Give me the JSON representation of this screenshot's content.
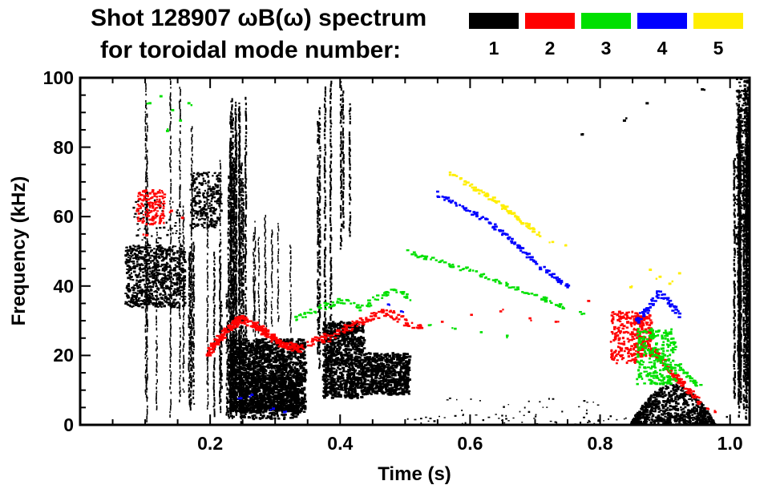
{
  "chart_data": {
    "type": "scatter",
    "title": "Shot 128907 ωB(ω) spectrum",
    "subtitle": "for toroidal mode number:",
    "xlabel": "Time (s)",
    "ylabel": "Frequency (kHz)",
    "xlim": [
      0.0,
      1.03
    ],
    "ylim": [
      0,
      100
    ],
    "xticks": [
      0.2,
      0.4,
      0.6,
      0.8,
      1.0
    ],
    "xtick_labels": [
      "0.2",
      "0.4",
      "0.6",
      "0.8",
      "1.0"
    ],
    "xtick_minor": 0.05,
    "yticks": [
      0,
      20,
      40,
      60,
      80,
      100
    ],
    "ytick_labels": [
      "0",
      "20",
      "40",
      "60",
      "80",
      "100"
    ],
    "ytick_minor": 5,
    "background": "#ffffff",
    "axis_color": "#000000",
    "legend_position": "top-right",
    "series": [
      {
        "mode": "1",
        "color": "#000000",
        "elements": [
          {
            "kind": "blob",
            "t": [
              0.068,
              0.16
            ],
            "f": [
              34,
              52
            ],
            "n": 800,
            "s": 2.2
          },
          {
            "kind": "blob",
            "t": [
              0.08,
              0.155
            ],
            "f": [
              52,
              66
            ],
            "n": 70,
            "s": 1.8
          },
          {
            "kind": "vstreaks",
            "t": [
              0.1,
              0.215
            ],
            "fbase": [
              0,
              12
            ],
            "ftop": [
              55,
              100
            ],
            "count": 9,
            "w": 1.6
          },
          {
            "kind": "vstreaks",
            "t": [
              0.165,
              0.235
            ],
            "fbase": [
              0,
              8
            ],
            "ftop": [
              30,
              55
            ],
            "count": 7,
            "w": 2.0
          },
          {
            "kind": "blob",
            "t": [
              0.168,
              0.215
            ],
            "f": [
              57,
              73
            ],
            "n": 260,
            "s": 2.2
          },
          {
            "kind": "vstreaks",
            "t": [
              0.225,
              0.258
            ],
            "fbase": [
              0,
              6
            ],
            "ftop": [
              68,
              100
            ],
            "count": 14,
            "w": 2.2
          },
          {
            "kind": "blob",
            "t": [
              0.228,
              0.345
            ],
            "f": [
              4,
              25
            ],
            "n": 1700,
            "s": 2.6
          },
          {
            "kind": "blob",
            "t": [
              0.245,
              0.335
            ],
            "f": [
              2,
              14
            ],
            "n": 500,
            "s": 2.6
          },
          {
            "kind": "vstreaks",
            "t": [
              0.26,
              0.335
            ],
            "fbase": [
              24,
              30
            ],
            "ftop": [
              40,
              62
            ],
            "count": 8,
            "w": 1.5
          },
          {
            "kind": "vstreaks",
            "t": [
              0.363,
              0.386
            ],
            "fbase": [
              8,
              20
            ],
            "ftop": [
              78,
              100
            ],
            "count": 4,
            "w": 2.2
          },
          {
            "kind": "vstreaks",
            "t": [
              0.398,
              0.415
            ],
            "fbase": [
              50,
              60
            ],
            "ftop": [
              88,
              100
            ],
            "count": 3,
            "w": 2.2
          },
          {
            "kind": "blob",
            "t": [
              0.372,
              0.435
            ],
            "f": [
              8,
              30
            ],
            "n": 950,
            "s": 2.6
          },
          {
            "kind": "blob",
            "t": [
              0.435,
              0.505
            ],
            "f": [
              9,
              21
            ],
            "n": 650,
            "s": 2.6
          },
          {
            "kind": "blob",
            "t": [
              0.5,
              1.0
            ],
            "f": [
              0,
              3
            ],
            "n": 90,
            "s": 1.6
          },
          {
            "kind": "blob",
            "t": [
              0.55,
              0.8
            ],
            "f": [
              3,
              8
            ],
            "n": 28,
            "s": 1.5
          },
          {
            "kind": "blob",
            "t": [
              0.845,
              0.975
            ],
            "f": [
              0,
              12
            ],
            "n": 800,
            "s": 2.4,
            "profile": "hill"
          },
          {
            "kind": "vstreaks",
            "t": [
              1.005,
              1.028
            ],
            "fbase": [
              0,
              18
            ],
            "ftop": [
              75,
              100
            ],
            "count": 12,
            "w": 2.4
          },
          {
            "kind": "blob",
            "t": [
              1.008,
              1.028
            ],
            "f": [
              52,
              100
            ],
            "n": 320,
            "s": 2.2
          },
          {
            "kind": "dots",
            "pts": [
              [
                0.955,
                97
              ],
              [
                0.87,
                93
              ],
              [
                0.835,
                88
              ],
              [
                0.77,
                84
              ]
            ],
            "s": 2.5
          }
        ]
      },
      {
        "mode": "2",
        "color": "#ff0000",
        "elements": [
          {
            "kind": "blob",
            "t": [
              0.085,
              0.128
            ],
            "f": [
              58,
              68
            ],
            "n": 160,
            "s": 2.2
          },
          {
            "kind": "dots",
            "pts": [
              [
                0.138,
                62
              ],
              [
                0.1,
                55
              ],
              [
                0.155,
                60
              ]
            ],
            "s": 2.5
          },
          {
            "kind": "chain",
            "pts": [
              [
                0.195,
                21
              ],
              [
                0.22,
                27
              ],
              [
                0.245,
                31
              ],
              [
                0.275,
                28
              ],
              [
                0.305,
                24
              ],
              [
                0.335,
                22
              ]
            ],
            "n": 260,
            "jit": 2.2,
            "s": 2.6
          },
          {
            "kind": "chain",
            "pts": [
              [
                0.34,
                23
              ],
              [
                0.385,
                26
              ],
              [
                0.43,
                30
              ],
              [
                0.465,
                33
              ],
              [
                0.5,
                30
              ],
              [
                0.525,
                28
              ]
            ],
            "n": 130,
            "jit": 2.4,
            "s": 2.4
          },
          {
            "kind": "dots",
            "pts": [
              [
                0.555,
                30
              ],
              [
                0.6,
                32
              ],
              [
                0.645,
                33
              ],
              [
                0.69,
                31
              ],
              [
                0.73,
                30
              ],
              [
                0.78,
                36
              ]
            ],
            "s": 2.2
          },
          {
            "kind": "blob",
            "t": [
              0.815,
              0.855
            ],
            "f": [
              18,
              33
            ],
            "n": 180,
            "s": 2.4
          },
          {
            "kind": "blob",
            "t": [
              0.855,
              0.878
            ],
            "f": [
              20,
              32
            ],
            "n": 140,
            "s": 2.4
          },
          {
            "kind": "chain",
            "pts": [
              [
                0.878,
                22
              ],
              [
                0.9,
                17
              ],
              [
                0.925,
                12
              ],
              [
                0.95,
                7
              ]
            ],
            "n": 110,
            "jit": 1.8,
            "s": 2.4
          },
          {
            "kind": "dots",
            "pts": [
              [
                0.963,
                5
              ],
              [
                0.975,
                4
              ]
            ],
            "s": 2.2
          }
        ]
      },
      {
        "mode": "3",
        "color": "#00e000",
        "elements": [
          {
            "kind": "dots",
            "pts": [
              [
                0.105,
                93
              ],
              [
                0.122,
                95
              ],
              [
                0.14,
                91
              ],
              [
                0.152,
                88
              ],
              [
                0.132,
                85
              ],
              [
                0.165,
                93
              ]
            ],
            "s": 2.4
          },
          {
            "kind": "chain",
            "pts": [
              [
                0.33,
                31
              ],
              [
                0.365,
                34
              ],
              [
                0.4,
                36
              ],
              [
                0.43,
                34
              ],
              [
                0.455,
                37
              ],
              [
                0.48,
                39
              ],
              [
                0.505,
                37
              ]
            ],
            "n": 85,
            "jit": 1.8,
            "s": 2.4
          },
          {
            "kind": "chain",
            "pts": [
              [
                0.5,
                50
              ],
              [
                0.555,
                47
              ],
              [
                0.61,
                44
              ],
              [
                0.665,
                40
              ],
              [
                0.72,
                36
              ],
              [
                0.775,
                32
              ]
            ],
            "n": 95,
            "jit": 1.2,
            "s": 2.4
          },
          {
            "kind": "dots",
            "pts": [
              [
                0.535,
                29
              ],
              [
                0.575,
                28
              ],
              [
                0.615,
                27
              ],
              [
                0.655,
                26
              ]
            ],
            "s": 2.2
          },
          {
            "kind": "blob",
            "t": [
              0.855,
              0.915
            ],
            "f": [
              12,
              28
            ],
            "n": 260,
            "s": 2.5
          },
          {
            "kind": "chain",
            "pts": [
              [
                0.915,
                18
              ],
              [
                0.935,
                14
              ],
              [
                0.955,
                11
              ]
            ],
            "n": 30,
            "jit": 1.5,
            "s": 2.4
          }
        ]
      },
      {
        "mode": "4",
        "color": "#0000ff",
        "elements": [
          {
            "kind": "chain",
            "pts": [
              [
                0.545,
                67
              ],
              [
                0.585,
                63
              ],
              [
                0.625,
                59
              ],
              [
                0.665,
                53
              ],
              [
                0.705,
                46
              ],
              [
                0.75,
                40
              ]
            ],
            "n": 110,
            "jit": 1.2,
            "s": 2.6
          },
          {
            "kind": "dots",
            "pts": [
              [
                0.245,
                8
              ],
              [
                0.262,
                9
              ],
              [
                0.295,
                5
              ],
              [
                0.312,
                4
              ]
            ],
            "s": 2.4
          },
          {
            "kind": "dots",
            "pts": [
              [
                0.472,
                35
              ],
              [
                0.492,
                33
              ]
            ],
            "s": 2.2
          },
          {
            "kind": "chain",
            "pts": [
              [
                0.855,
                30
              ],
              [
                0.872,
                34
              ],
              [
                0.888,
                38
              ],
              [
                0.905,
                36
              ],
              [
                0.92,
                32
              ]
            ],
            "n": 70,
            "jit": 1.8,
            "s": 2.5
          }
        ]
      },
      {
        "mode": "5",
        "color": "#ffee00",
        "elements": [
          {
            "kind": "chain",
            "pts": [
              [
                0.565,
                73
              ],
              [
                0.6,
                69
              ],
              [
                0.635,
                65
              ],
              [
                0.67,
                60
              ],
              [
                0.705,
                55
              ]
            ],
            "n": 85,
            "jit": 1.2,
            "s": 2.6
          },
          {
            "kind": "dots",
            "pts": [
              [
                0.725,
                53
              ],
              [
                0.745,
                52
              ]
            ],
            "s": 2.2
          },
          {
            "kind": "dots",
            "pts": [
              [
                0.845,
                40
              ],
              [
                0.875,
                45
              ],
              [
                0.89,
                43
              ],
              [
                0.905,
                41
              ],
              [
                0.92,
                44
              ]
            ],
            "s": 2.4
          }
        ]
      }
    ]
  }
}
